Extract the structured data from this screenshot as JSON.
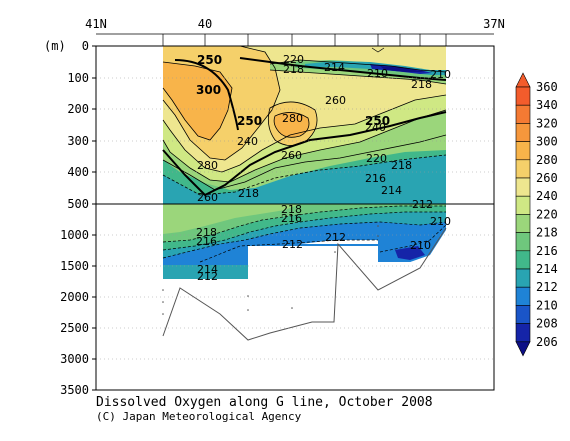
{
  "chart_data": {
    "type": "heatmap",
    "title": "Dissolved Oxygen along G line, October 2008",
    "credit": "(C) Japan Meteorological Agency",
    "ylabel": "(m)",
    "x_ticks": [
      "41N",
      "40",
      "37N"
    ],
    "y_ticks_upper": [
      "0",
      "100",
      "200",
      "300",
      "400",
      "500"
    ],
    "y_ticks_lower": [
      "1000",
      "1500",
      "2000",
      "2500",
      "3000",
      "3500"
    ],
    "colorbar": {
      "levels": [
        "360",
        "340",
        "320",
        "300",
        "280",
        "260",
        "240",
        "220",
        "218",
        "216",
        "214",
        "212",
        "210",
        "208",
        "206"
      ],
      "colors": [
        "#f35c2c",
        "#f47a33",
        "#f6973c",
        "#f8b44a",
        "#f5d06a",
        "#eee68f",
        "#cfe884",
        "#9bd67b",
        "#6fc77d",
        "#41b88a",
        "#29a4b2",
        "#1f83d6",
        "#1a55c8",
        "#1524a8",
        "#0d0f86"
      ]
    },
    "contour_labels": [
      {
        "value": "250",
        "bold": true
      },
      {
        "value": "220",
        "bold": false
      },
      {
        "value": "218",
        "bold": false
      },
      {
        "value": "214",
        "bold": false
      },
      {
        "value": "210",
        "bold": false
      },
      {
        "value": "218",
        "bold": false
      },
      {
        "value": "210",
        "bold": false
      },
      {
        "value": "300",
        "bold": true
      },
      {
        "value": "260",
        "bold": false
      },
      {
        "value": "250",
        "bold": true
      },
      {
        "value": "280",
        "bold": false
      },
      {
        "value": "250",
        "bold": true
      },
      {
        "value": "240",
        "bold": false
      },
      {
        "value": "240",
        "bold": false
      },
      {
        "value": "260",
        "bold": false
      },
      {
        "value": "220",
        "bold": false
      },
      {
        "value": "280",
        "bold": false
      },
      {
        "value": "218",
        "bold": false
      },
      {
        "value": "216",
        "bold": false
      },
      {
        "value": "214",
        "bold": false
      },
      {
        "value": "218",
        "bold": false
      },
      {
        "value": "260",
        "bold": false
      },
      {
        "value": "212",
        "bold": false
      },
      {
        "value": "218",
        "bold": false
      },
      {
        "value": "216",
        "bold": false
      },
      {
        "value": "218",
        "bold": false
      },
      {
        "value": "216",
        "bold": false
      },
      {
        "value": "212",
        "bold": false
      },
      {
        "value": "212",
        "bold": false
      },
      {
        "value": "210",
        "bold": false
      },
      {
        "value": "210",
        "bold": false
      },
      {
        "value": "214",
        "bold": false
      },
      {
        "value": "212",
        "bold": false
      }
    ]
  }
}
